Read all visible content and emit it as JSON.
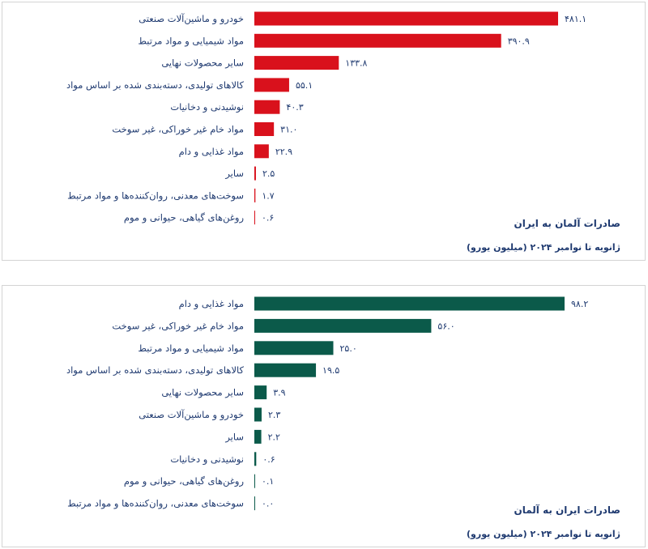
{
  "chart_data": [
    {
      "type": "bar",
      "orientation": "horizontal",
      "title": "صادرات آلمان به ایران",
      "subtitle": "ژانویه تا نوامبر ۲۰۲۴ (میلیون یورو)",
      "color": "#d9111c",
      "xlim": [
        0,
        481.1
      ],
      "categories": [
        "خودرو و ماشین‌آلات صنعتی",
        "مواد شیمیایی و مواد مرتبط",
        "سایر محصولات نهایی",
        "کالاهای تولیدی، دسته‌بندی شده بر اساس مواد",
        "نوشیدنی و دخانیات",
        "مواد خام غیر خوراکی، غیر سوخت",
        "مواد غذایی و دام",
        "سایر",
        "سوخت‌های معدنی، روان‌کننده‌ها و مواد مرتبط",
        "روغن‌های گیاهی، حیوانی و موم"
      ],
      "values": [
        481.1,
        390.9,
        133.8,
        55.1,
        40.3,
        31.0,
        22.9,
        2.5,
        1.7,
        0.6
      ],
      "value_labels": [
        "۴۸۱.۱",
        "۳۹۰.۹",
        "۱۳۳.۸",
        "۵۵.۱",
        "۴۰.۳",
        "۳۱.۰",
        "۲۲.۹",
        "۲.۵",
        "۱.۷",
        "۰.۶"
      ]
    },
    {
      "type": "bar",
      "orientation": "horizontal",
      "title": "صادرات ایران به آلمان",
      "subtitle": "ژانویه تا نوامبر ۲۰۲۴ (میلیون یورو)",
      "color": "#0b5a4a",
      "xlim": [
        0,
        98.2
      ],
      "categories": [
        "مواد غذایی و دام",
        "مواد خام غیر خوراکی، غیر سوخت",
        "مواد شیمیایی و مواد مرتبط",
        "کالاهای تولیدی، دسته‌بندی شده بر اساس مواد",
        "سایر محصولات نهایی",
        "خودرو و ماشین‌آلات صنعتی",
        "سایر",
        "نوشیدنی و دخانیات",
        "روغن‌های گیاهی، حیوانی و موم",
        "سوخت‌های معدنی، روان‌کننده‌ها و مواد مرتبط"
      ],
      "values": [
        98.2,
        56.0,
        25.0,
        19.5,
        3.9,
        2.3,
        2.2,
        0.6,
        0.1,
        0.0
      ],
      "value_labels": [
        "۹۸.۲",
        "۵۶.۰",
        "۲۵.۰",
        "۱۹.۵",
        "۳.۹",
        "۲.۳",
        "۲.۲",
        "۰.۶",
        "۰.۱",
        "۰.۰"
      ]
    }
  ]
}
